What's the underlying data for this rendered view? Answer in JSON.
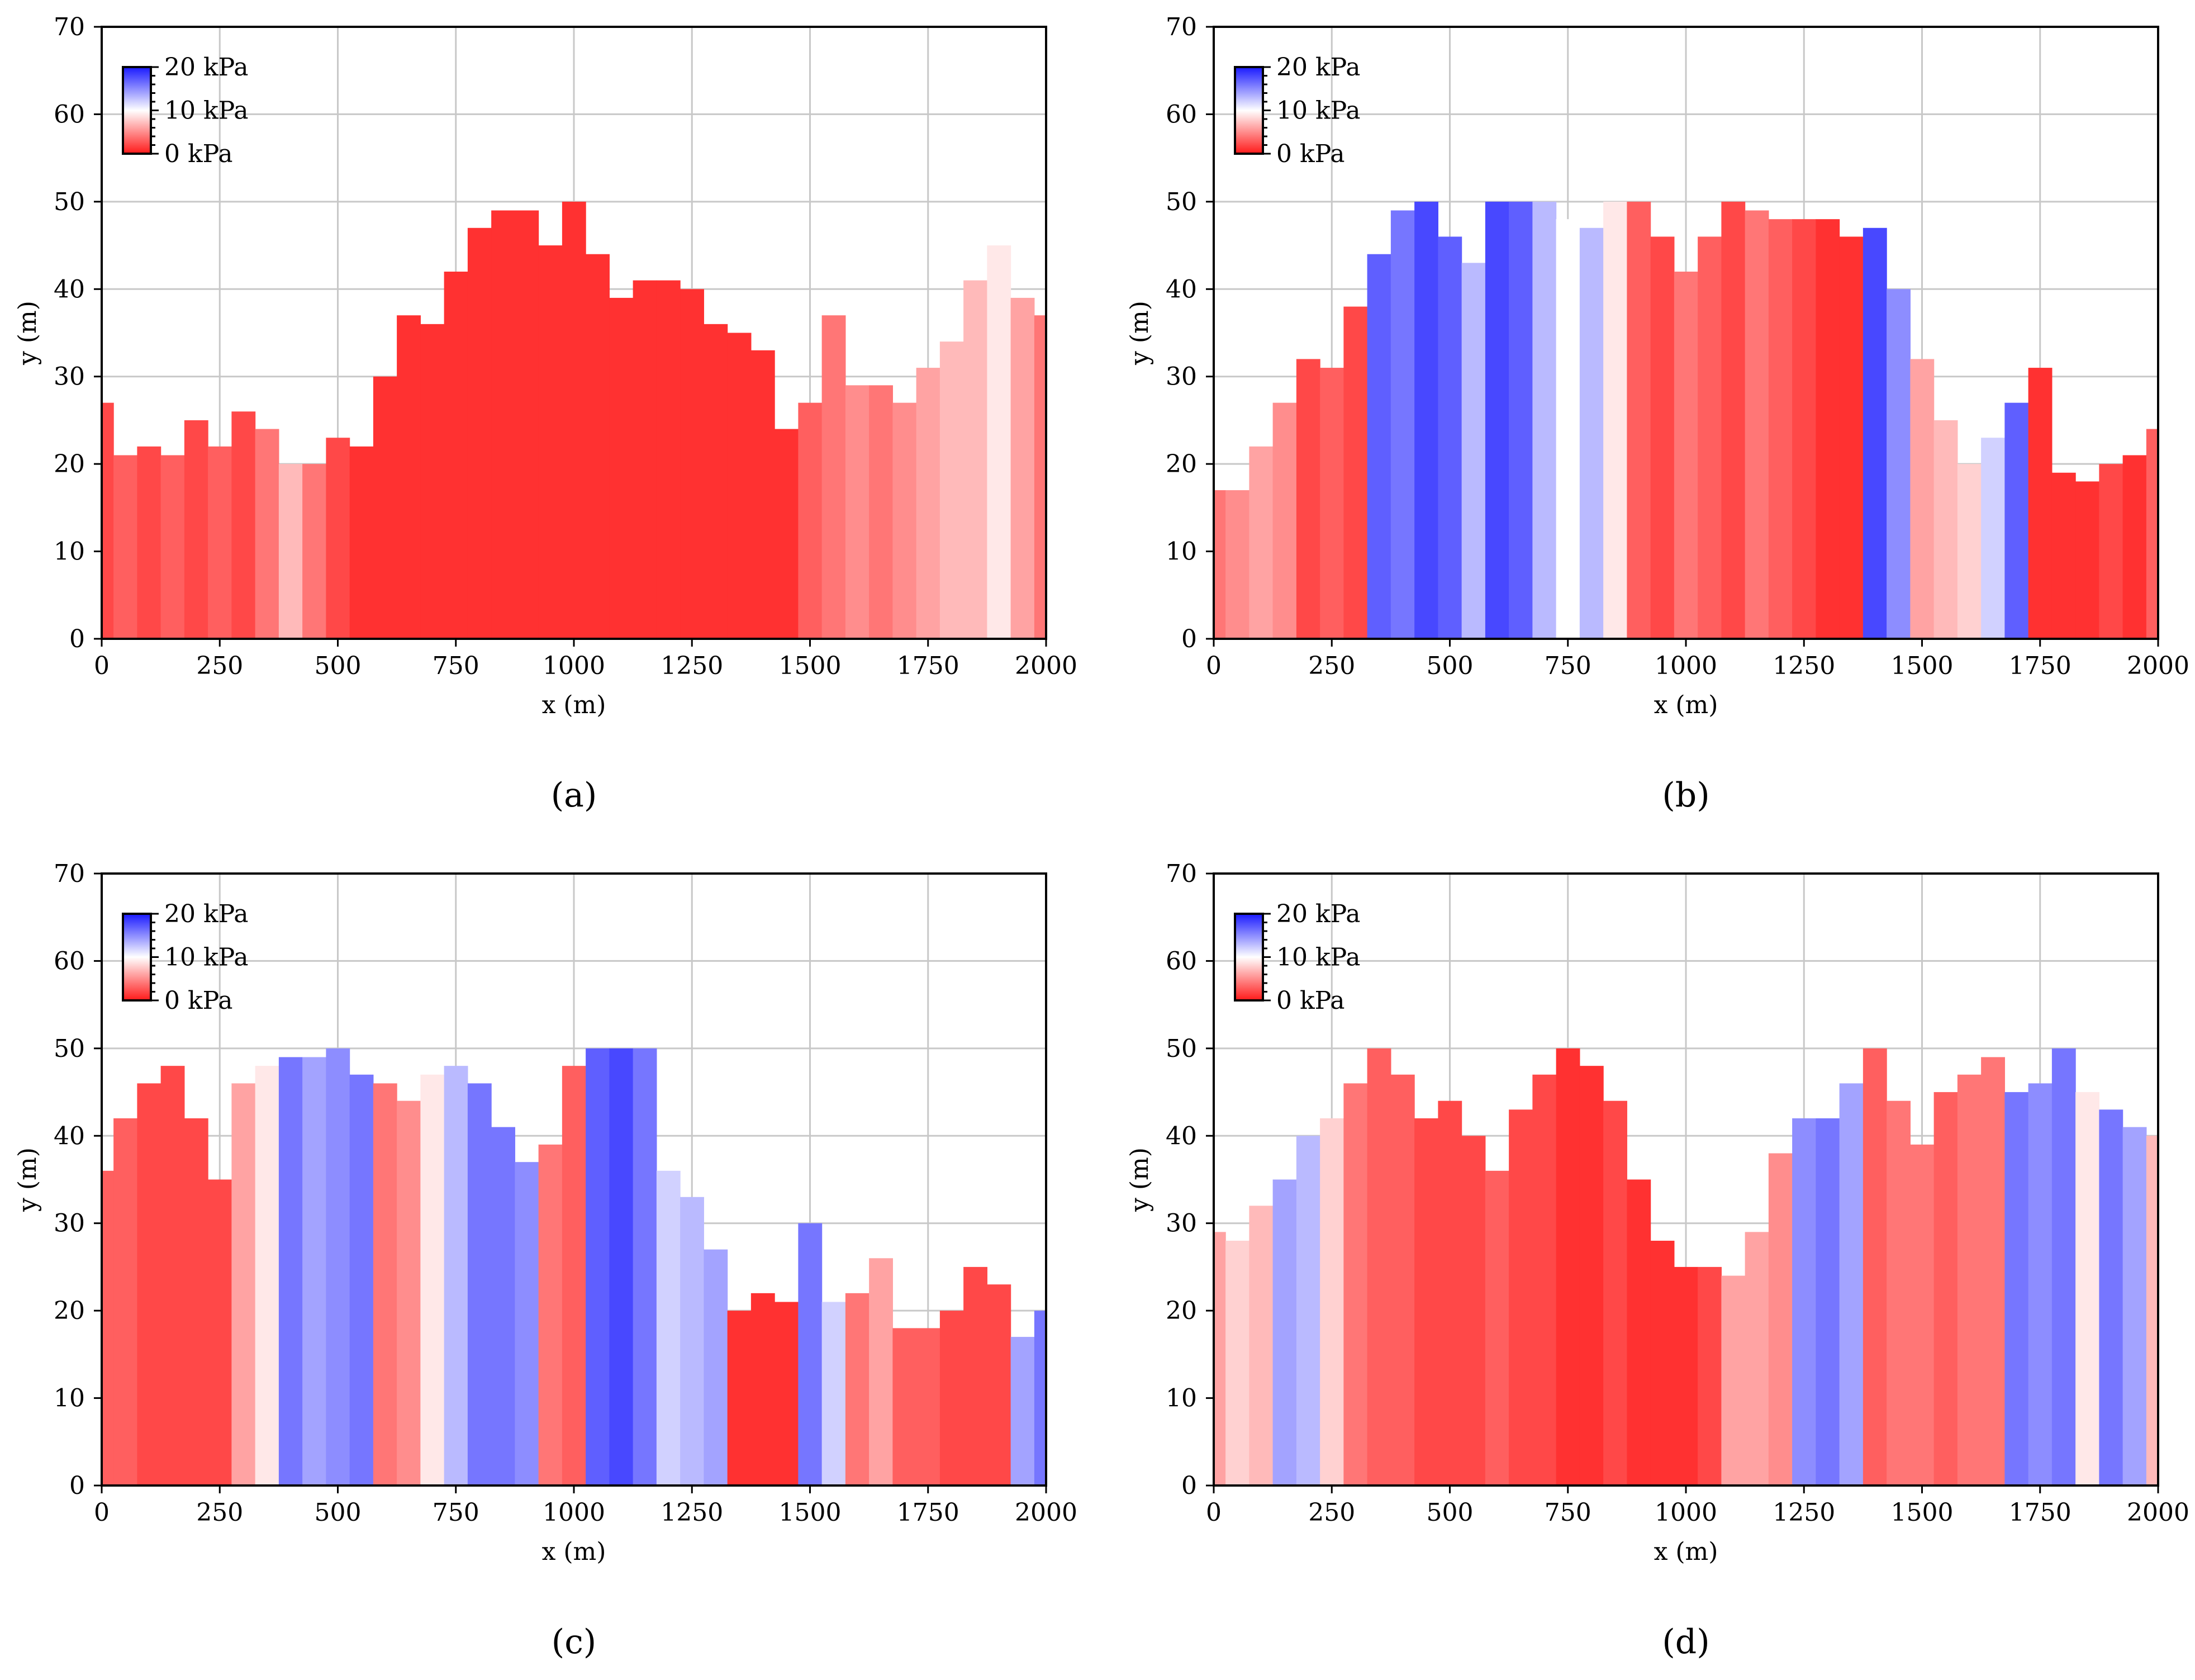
{
  "chart_data": [
    {
      "panel": "a",
      "caption": "(a)",
      "type": "area",
      "title": "",
      "xlabel": "x (m)",
      "ylabel": "y (m)",
      "xlim": [
        0,
        2000
      ],
      "ylim": [
        0,
        70
      ],
      "xticks": [
        "0",
        "250",
        "500",
        "750",
        "1000",
        "1250",
        "1500",
        "1750",
        "2000"
      ],
      "yticks": [
        "0",
        "10",
        "20",
        "30",
        "40",
        "50",
        "60",
        "70"
      ],
      "grid": true,
      "legend": "top-left",
      "colorbar": {
        "labels": [
          "20 kPa",
          "10 kPa",
          "0 kPa"
        ],
        "range_kPa": [
          0,
          20
        ],
        "colors": {
          "high": "#1a1aff",
          "mid": "#ffffff",
          "low": "#ff1a1a"
        }
      },
      "x": [
        0,
        50,
        100,
        150,
        200,
        250,
        300,
        350,
        400,
        450,
        500,
        550,
        600,
        650,
        700,
        750,
        800,
        850,
        900,
        950,
        1000,
        1050,
        1100,
        1150,
        1200,
        1250,
        1300,
        1350,
        1400,
        1450,
        1500,
        1550,
        1600,
        1650,
        1700,
        1750,
        1800,
        1850,
        1900,
        1950,
        2000
      ],
      "height_m": [
        27,
        21,
        22,
        21,
        25,
        22,
        26,
        24,
        20,
        20,
        23,
        22,
        30,
        37,
        36,
        42,
        47,
        49,
        49,
        45,
        50,
        44,
        39,
        41,
        41,
        40,
        36,
        35,
        33,
        24,
        27,
        37,
        29,
        29,
        27,
        31,
        34,
        41,
        45,
        39,
        37
      ],
      "pressure_kPa": [
        2,
        3,
        2,
        3,
        2,
        3,
        2,
        4,
        7,
        4,
        2,
        1,
        1,
        1,
        1,
        1,
        1,
        1,
        1,
        1,
        1,
        1,
        1,
        1,
        1,
        1,
        1,
        1,
        1,
        1,
        3,
        4,
        5,
        4,
        5,
        6,
        7,
        7,
        9,
        6,
        4
      ]
    },
    {
      "panel": "b",
      "caption": "(b)",
      "type": "area",
      "title": "",
      "xlabel": "x (m)",
      "ylabel": "y (m)",
      "xlim": [
        0,
        2000
      ],
      "ylim": [
        0,
        70
      ],
      "xticks": [
        "0",
        "250",
        "500",
        "750",
        "1000",
        "1250",
        "1500",
        "1750",
        "2000"
      ],
      "yticks": [
        "0",
        "10",
        "20",
        "30",
        "40",
        "50",
        "60",
        "70"
      ],
      "grid": true,
      "legend": "top-left",
      "colorbar": {
        "labels": [
          "20 kPa",
          "10 kPa",
          "0 kPa"
        ],
        "range_kPa": [
          0,
          20
        ],
        "colors": {
          "high": "#1a1aff",
          "mid": "#ffffff",
          "low": "#ff1a1a"
        }
      },
      "x": [
        0,
        50,
        100,
        150,
        200,
        250,
        300,
        350,
        400,
        450,
        500,
        550,
        600,
        650,
        700,
        750,
        800,
        850,
        900,
        950,
        1000,
        1050,
        1100,
        1150,
        1200,
        1250,
        1300,
        1350,
        1400,
        1450,
        1500,
        1550,
        1600,
        1650,
        1700,
        1750,
        1800,
        1850,
        1900,
        1950,
        2000
      ],
      "height_m": [
        17,
        17,
        22,
        27,
        32,
        31,
        38,
        44,
        49,
        50,
        46,
        43,
        50,
        50,
        50,
        48,
        47,
        50,
        50,
        46,
        42,
        46,
        50,
        49,
        48,
        48,
        48,
        46,
        47,
        40,
        32,
        25,
        20,
        23,
        27,
        31,
        19,
        18,
        20,
        21,
        24
      ],
      "pressure_kPa": [
        4,
        5,
        6,
        5,
        2,
        3,
        2,
        17,
        16,
        18,
        17,
        13,
        18,
        17,
        13,
        10,
        13,
        9,
        3,
        2,
        4,
        3,
        2,
        4,
        3,
        2,
        1,
        1,
        18,
        15,
        6,
        7,
        8,
        12,
        17,
        1,
        1,
        1,
        2,
        1,
        3
      ]
    },
    {
      "panel": "c",
      "caption": "(c)",
      "type": "area",
      "title": "",
      "xlabel": "x (m)",
      "ylabel": "y (m)",
      "xlim": [
        0,
        2000
      ],
      "ylim": [
        0,
        70
      ],
      "xticks": [
        "0",
        "250",
        "500",
        "750",
        "1000",
        "1250",
        "1500",
        "1750",
        "2000"
      ],
      "yticks": [
        "0",
        "10",
        "20",
        "30",
        "40",
        "50",
        "60",
        "70"
      ],
      "grid": true,
      "legend": "top-left",
      "colorbar": {
        "labels": [
          "20 kPa",
          "10 kPa",
          "0 kPa"
        ],
        "range_kPa": [
          0,
          20
        ],
        "colors": {
          "high": "#1a1aff",
          "mid": "#ffffff",
          "low": "#ff1a1a"
        }
      },
      "x": [
        0,
        50,
        100,
        150,
        200,
        250,
        300,
        350,
        400,
        450,
        500,
        550,
        600,
        650,
        700,
        750,
        800,
        850,
        900,
        950,
        1000,
        1050,
        1100,
        1150,
        1200,
        1250,
        1300,
        1350,
        1400,
        1450,
        1500,
        1550,
        1600,
        1650,
        1700,
        1750,
        1800,
        1850,
        1900,
        1950,
        2000
      ],
      "height_m": [
        36,
        42,
        46,
        48,
        42,
        35,
        46,
        48,
        49,
        49,
        50,
        47,
        46,
        44,
        47,
        48,
        46,
        41,
        37,
        39,
        48,
        50,
        50,
        50,
        36,
        33,
        27,
        20,
        22,
        21,
        30,
        21,
        22,
        26,
        18,
        18,
        20,
        25,
        23,
        17,
        20
      ],
      "pressure_kPa": [
        3,
        3,
        2,
        2,
        2,
        2,
        6,
        9,
        16,
        14,
        15,
        16,
        4,
        5,
        9,
        13,
        16,
        16,
        15,
        4,
        3,
        17,
        18,
        16,
        12,
        13,
        14,
        1,
        1,
        1,
        16,
        12,
        4,
        6,
        3,
        3,
        2,
        2,
        2,
        14,
        16
      ]
    },
    {
      "panel": "d",
      "caption": "(d)",
      "type": "area",
      "title": "",
      "xlabel": "x (m)",
      "ylabel": "y (m)",
      "xlim": [
        0,
        2000
      ],
      "ylim": [
        0,
        70
      ],
      "xticks": [
        "0",
        "250",
        "500",
        "750",
        "1000",
        "1250",
        "1500",
        "1750",
        "2000"
      ],
      "yticks": [
        "0",
        "10",
        "20",
        "30",
        "40",
        "50",
        "60",
        "70"
      ],
      "grid": true,
      "legend": "top-left",
      "colorbar": {
        "labels": [
          "20 kPa",
          "10 kPa",
          "0 kPa"
        ],
        "range_kPa": [
          0,
          20
        ],
        "colors": {
          "high": "#1a1aff",
          "mid": "#ffffff",
          "low": "#ff1a1a"
        }
      },
      "x": [
        0,
        50,
        100,
        150,
        200,
        250,
        300,
        350,
        400,
        450,
        500,
        550,
        600,
        650,
        700,
        750,
        800,
        850,
        900,
        950,
        1000,
        1050,
        1100,
        1150,
        1200,
        1250,
        1300,
        1350,
        1400,
        1450,
        1500,
        1550,
        1600,
        1650,
        1700,
        1750,
        1800,
        1850,
        1900,
        1950,
        2000
      ],
      "height_m": [
        29,
        28,
        32,
        35,
        40,
        42,
        46,
        50,
        47,
        42,
        44,
        40,
        36,
        43,
        47,
        50,
        48,
        44,
        35,
        28,
        25,
        25,
        24,
        29,
        38,
        42,
        42,
        46,
        50,
        44,
        39,
        45,
        47,
        49,
        45,
        46,
        50,
        45,
        43,
        41,
        40
      ],
      "pressure_kPa": [
        6,
        8,
        7,
        14,
        13,
        8,
        4,
        3,
        3,
        2,
        2,
        2,
        3,
        2,
        2,
        1,
        1,
        2,
        1,
        1,
        1,
        2,
        6,
        6,
        5,
        15,
        16,
        14,
        3,
        4,
        4,
        3,
        4,
        4,
        16,
        15,
        16,
        9,
        16,
        14,
        7
      ]
    }
  ]
}
